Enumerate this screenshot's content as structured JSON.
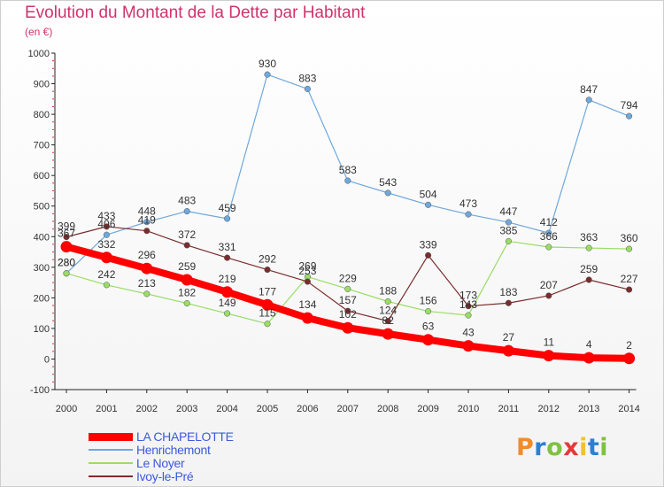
{
  "title": "Evolution du Montant de la Dette par Habitant",
  "subtitle": "(en €)",
  "brand": {
    "logo_text": "Proxiti",
    "colors": [
      "#f28c28",
      "#2b7fd4",
      "#7fc241",
      "#e23a3a",
      "#f2c12e",
      "#2b7fd4",
      "#7fc241"
    ]
  },
  "chart_data": {
    "type": "line",
    "title": "Evolution du Montant de la Dette par Habitant",
    "ylabel": "(en €)",
    "xlabel": "",
    "categories": [
      "2000",
      "2001",
      "2002",
      "2003",
      "2004",
      "2005",
      "2006",
      "2007",
      "2008",
      "2009",
      "2010",
      "2011",
      "2012",
      "2013",
      "2014"
    ],
    "ylim": [
      -100,
      1000
    ],
    "yticks": [
      -100,
      0,
      100,
      200,
      300,
      400,
      500,
      600,
      700,
      800,
      900,
      1000
    ],
    "grid": false,
    "legend_position": "bottom-left",
    "series": [
      {
        "name": "LA CHAPELOTTE",
        "color": "#ff0000",
        "values": [
          367,
          332,
          296,
          259,
          219,
          177,
          134,
          102,
          82,
          63,
          43,
          27,
          11,
          4,
          2
        ]
      },
      {
        "name": "Henrichemont",
        "color": "#6fa8dc",
        "values": [
          280,
          406,
          448,
          483,
          459,
          930,
          883,
          583,
          543,
          504,
          473,
          447,
          412,
          847,
          794
        ]
      },
      {
        "name": "Le Noyer",
        "color": "#99dd66",
        "values": [
          280,
          242,
          213,
          182,
          149,
          115,
          269,
          229,
          188,
          156,
          143,
          385,
          366,
          363,
          360
        ]
      },
      {
        "name": "Ivoy-le-Pré",
        "color": "#7a2d2d",
        "values": [
          399,
          433,
          419,
          372,
          331,
          292,
          253,
          157,
          124,
          339,
          173,
          183,
          207,
          259,
          227
        ]
      }
    ],
    "data_labels": {
      "LA CHAPELOTTE": [
        "367",
        "332",
        "296",
        "259",
        "219",
        "177",
        "134",
        "102",
        "82",
        "63",
        "43",
        "27",
        "11",
        "4",
        "2"
      ],
      "Henrichemont": [
        "280",
        "406",
        "448",
        "483",
        "459",
        "930",
        "883",
        "583",
        "543",
        "504",
        "473",
        "447",
        "412",
        "847",
        "794"
      ],
      "Le Noyer": [
        "280",
        "242",
        "213",
        "182",
        "149",
        "115",
        "269",
        "229",
        "188",
        "156",
        "143",
        "385",
        "366",
        "363",
        "360"
      ],
      "Ivoy-le-Pré": [
        "399",
        "433",
        "419",
        "372",
        "331",
        "292",
        "253",
        "157",
        "124",
        "339",
        "173",
        "183",
        "207",
        "259",
        "227"
      ]
    }
  }
}
